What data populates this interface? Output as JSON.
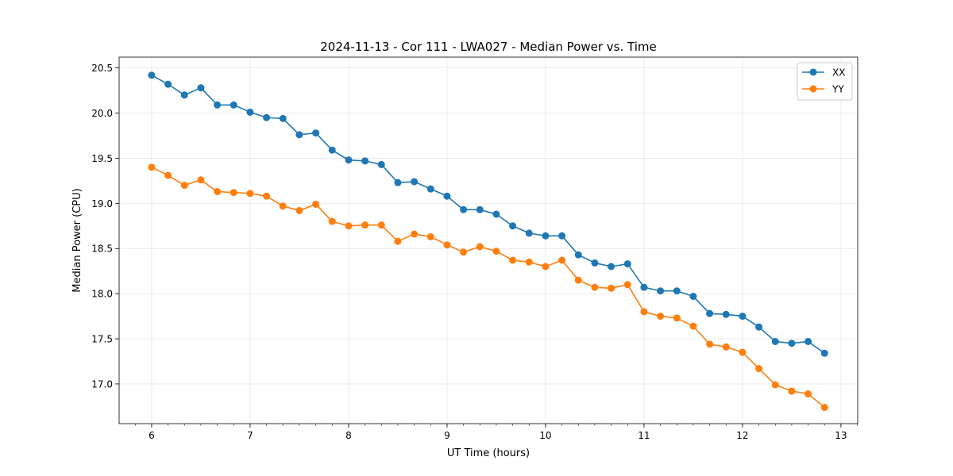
{
  "chart_data": {
    "type": "line",
    "title": "2024-11-13 - Cor 111 - LWA027 - Median Power vs. Time",
    "xlabel": "UT Time (hours)",
    "ylabel": "Median Power (CPU)",
    "xlim": [
      5.67,
      13.17
    ],
    "ylim": [
      16.56,
      20.62
    ],
    "xticks": [
      6,
      7,
      8,
      9,
      10,
      11,
      12,
      13
    ],
    "yticks": [
      17.0,
      17.5,
      18.0,
      18.5,
      19.0,
      19.5,
      20.0,
      20.5
    ],
    "grid": true,
    "legend_position": "top-right",
    "x": [
      6.0,
      6.1667,
      6.3333,
      6.5,
      6.6667,
      6.8333,
      7.0,
      7.1667,
      7.3333,
      7.5,
      7.6667,
      7.8333,
      8.0,
      8.1667,
      8.3333,
      8.5,
      8.6667,
      8.8333,
      9.0,
      9.1667,
      9.3333,
      9.5,
      9.6667,
      9.8333,
      10.0,
      10.1667,
      10.3333,
      10.5,
      10.6667,
      10.8333,
      11.0,
      11.1667,
      11.3333,
      11.5,
      11.6667,
      11.8333,
      12.0,
      12.1667,
      12.3333,
      12.5,
      12.6667,
      12.8333
    ],
    "series": [
      {
        "name": "XX",
        "color": "#1f77b4",
        "values": [
          20.42,
          20.32,
          20.2,
          20.28,
          20.09,
          20.09,
          20.01,
          19.95,
          19.94,
          19.76,
          19.78,
          19.59,
          19.48,
          19.47,
          19.43,
          19.23,
          19.24,
          19.16,
          19.08,
          18.93,
          18.93,
          18.88,
          18.75,
          18.67,
          18.64,
          18.64,
          18.43,
          18.34,
          18.3,
          18.33,
          18.07,
          18.03,
          18.03,
          17.97,
          17.78,
          17.77,
          17.75,
          17.63,
          17.47,
          17.45,
          17.47,
          17.34
        ]
      },
      {
        "name": "YY",
        "color": "#ff7f0e",
        "values": [
          19.4,
          19.31,
          19.2,
          19.26,
          19.13,
          19.12,
          19.11,
          19.08,
          18.97,
          18.92,
          18.99,
          18.8,
          18.75,
          18.76,
          18.76,
          18.58,
          18.66,
          18.63,
          18.54,
          18.46,
          18.52,
          18.47,
          18.37,
          18.35,
          18.3,
          18.37,
          18.15,
          18.07,
          18.06,
          18.1,
          17.8,
          17.75,
          17.73,
          17.64,
          17.44,
          17.41,
          17.35,
          17.17,
          16.99,
          16.92,
          16.89,
          16.74
        ]
      }
    ]
  }
}
